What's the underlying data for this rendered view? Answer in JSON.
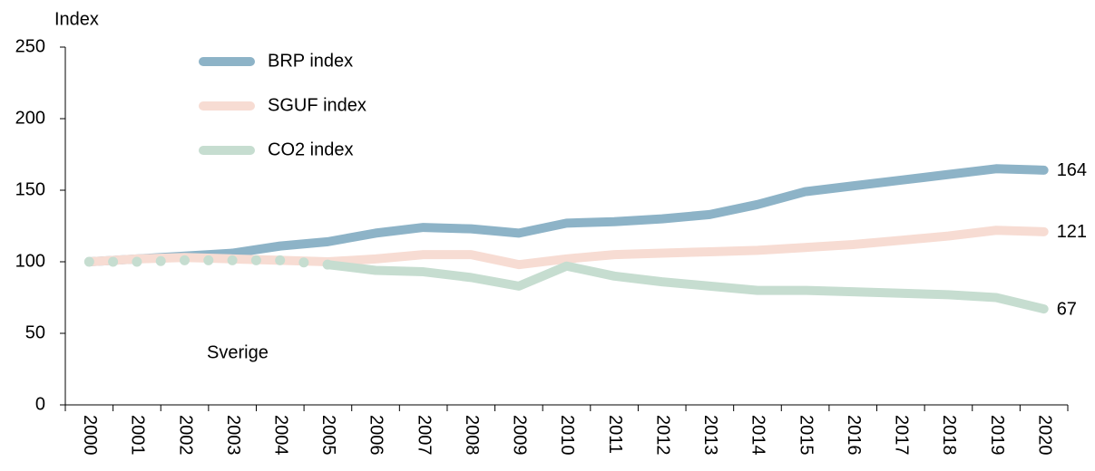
{
  "chart_data": {
    "type": "line",
    "y_label": "Index",
    "annotation": "Sverige",
    "categories": [
      "2000",
      "2001",
      "2002",
      "2003",
      "2004",
      "2005",
      "2006",
      "2007",
      "2008",
      "2009",
      "2010",
      "2011",
      "2012",
      "2013",
      "2014",
      "2015",
      "2016",
      "2017",
      "2018",
      "2019",
      "2020"
    ],
    "series": [
      {
        "name": "BRP index",
        "color": "#8db3c7",
        "values": [
          100,
          102,
          104,
          106,
          111,
          114,
          120,
          124,
          123,
          120,
          127,
          128,
          130,
          133,
          140,
          149,
          153,
          157,
          161,
          165,
          164
        ]
      },
      {
        "name": "SGUF index",
        "color": "#f7dcd3",
        "values": [
          100,
          102,
          103,
          102,
          101,
          100,
          102,
          105,
          105,
          98,
          102,
          105,
          106,
          107,
          108,
          110,
          112,
          115,
          118,
          122,
          121
        ]
      },
      {
        "name": "CO2 index",
        "color": "#c6ddd0",
        "dotted_through": "2005",
        "values": [
          100,
          100,
          101,
          101,
          101,
          98,
          94,
          93,
          89,
          83,
          97,
          90,
          86,
          83,
          80,
          80,
          79,
          78,
          77,
          75,
          67
        ]
      }
    ],
    "ylim": [
      0,
      250
    ],
    "yticks": [
      0,
      50,
      100,
      150,
      200,
      250
    ],
    "grid": false,
    "end_labels": true,
    "legend": "upper left"
  }
}
